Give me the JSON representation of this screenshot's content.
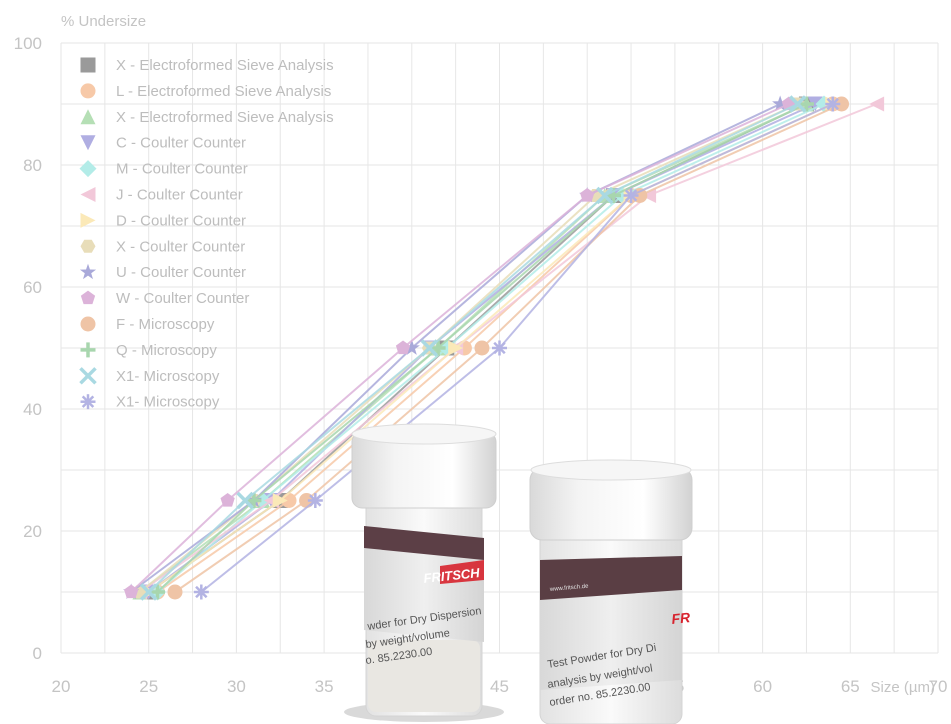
{
  "chart_data": {
    "type": "line",
    "title": "",
    "ylabel": "% Undersize",
    "xlabel": "Size (µm)",
    "xlim": [
      20,
      70
    ],
    "ylim": [
      0,
      100
    ],
    "xticks": [
      20,
      25,
      30,
      35,
      40,
      45,
      50,
      55,
      60,
      65,
      70
    ],
    "yticks": [
      0,
      20,
      40,
      60,
      80,
      100
    ],
    "grid": true,
    "legend_position": "top-left",
    "series": [
      {
        "name": "X  -  Electroformed Sieve Analysis",
        "marker": "square",
        "color": "#9a9a9a",
        "points": [
          [
            25.0,
            10
          ],
          [
            32.5,
            25
          ],
          [
            42.0,
            50
          ],
          [
            51.5,
            75
          ],
          [
            62.5,
            90
          ]
        ]
      },
      {
        "name": "L  -  Electroformed Sieve Analysis",
        "marker": "circle",
        "color": "#f7c9a8",
        "points": [
          [
            25.5,
            10
          ],
          [
            33.0,
            25
          ],
          [
            43.0,
            50
          ],
          [
            52.5,
            75
          ],
          [
            64.0,
            90
          ]
        ]
      },
      {
        "name": "X  -  Electroformed Sieve Analysis",
        "marker": "triangle-up",
        "color": "#b5dfb5",
        "points": [
          [
            24.5,
            10
          ],
          [
            31.5,
            25
          ],
          [
            41.5,
            50
          ],
          [
            51.0,
            75
          ],
          [
            62.5,
            90
          ]
        ]
      },
      {
        "name": "C  -  Coulter Counter",
        "marker": "triangle-down",
        "color": "#b0aee2",
        "points": [
          [
            25.0,
            10
          ],
          [
            32.0,
            25
          ],
          [
            41.0,
            50
          ],
          [
            51.5,
            75
          ],
          [
            63.0,
            90
          ]
        ]
      },
      {
        "name": "M  -  Coulter Counter",
        "marker": "diamond",
        "color": "#b3ece8",
        "points": [
          [
            25.5,
            10
          ],
          [
            31.5,
            25
          ],
          [
            42.0,
            50
          ],
          [
            52.0,
            75
          ],
          [
            63.5,
            90
          ]
        ]
      },
      {
        "name": "J  -  Coulter Counter",
        "marker": "triangle-left",
        "color": "#f2c8d9",
        "points": [
          [
            24.5,
            10
          ],
          [
            32.0,
            25
          ],
          [
            42.5,
            50
          ],
          [
            53.5,
            75
          ],
          [
            66.5,
            90
          ]
        ]
      },
      {
        "name": "D  -  Coulter Counter",
        "marker": "triangle-right",
        "color": "#fbe9b8",
        "points": [
          [
            25.0,
            10
          ],
          [
            32.5,
            25
          ],
          [
            42.5,
            50
          ],
          [
            52.5,
            75
          ],
          [
            64.0,
            90
          ]
        ]
      },
      {
        "name": "X  -  Coulter Counter",
        "marker": "hexagon",
        "color": "#e8ddb9",
        "points": [
          [
            24.5,
            10
          ],
          [
            31.0,
            25
          ],
          [
            41.0,
            50
          ],
          [
            50.5,
            75
          ],
          [
            62.0,
            90
          ]
        ]
      },
      {
        "name": "U  -  Coulter Counter",
        "marker": "star",
        "color": "#a9a9d9",
        "points": [
          [
            24.0,
            10
          ],
          [
            31.0,
            25
          ],
          [
            40.0,
            50
          ],
          [
            50.0,
            75
          ],
          [
            61.0,
            90
          ]
        ]
      },
      {
        "name": "W  -  Coulter Counter",
        "marker": "pentagon",
        "color": "#dcb3d9",
        "points": [
          [
            24.0,
            10
          ],
          [
            29.5,
            25
          ],
          [
            39.5,
            50
          ],
          [
            50.0,
            75
          ],
          [
            61.5,
            90
          ]
        ]
      },
      {
        "name": "F  -  Microscopy",
        "marker": "circle",
        "color": "#efc4a6",
        "points": [
          [
            26.5,
            10
          ],
          [
            34.0,
            25
          ],
          [
            44.0,
            50
          ],
          [
            53.0,
            75
          ],
          [
            64.5,
            90
          ]
        ]
      },
      {
        "name": "Q  -  Microscopy",
        "marker": "plus",
        "color": "#a8d6ae",
        "points": [
          [
            25.5,
            10
          ],
          [
            31.0,
            25
          ],
          [
            41.5,
            50
          ],
          [
            51.5,
            75
          ],
          [
            62.5,
            90
          ]
        ]
      },
      {
        "name": "X1-  Microscopy",
        "marker": "x",
        "color": "#a9d9e2",
        "points": [
          [
            25.0,
            10
          ],
          [
            30.5,
            25
          ],
          [
            41.0,
            50
          ],
          [
            51.0,
            75
          ],
          [
            62.0,
            90
          ]
        ]
      },
      {
        "name": "X1-  Microscopy",
        "marker": "asterisk",
        "color": "#b3b3e3",
        "points": [
          [
            28.0,
            10
          ],
          [
            34.5,
            25
          ],
          [
            45.0,
            50
          ],
          [
            52.5,
            75
          ],
          [
            64.0,
            90
          ]
        ]
      }
    ]
  },
  "photo": {
    "jar_left": {
      "brand": "FRITSCH",
      "line1": "wder for Dry Dispersion",
      "line2": "by weight/volume",
      "line3": "o. 85.2230.00"
    },
    "jar_right": {
      "brand": "FR",
      "url": "www.fritsch.de",
      "line1": "Test Powder for Dry Di",
      "line2": "analysis by weight/vol",
      "line3": "order no. 85.2230.00"
    }
  }
}
